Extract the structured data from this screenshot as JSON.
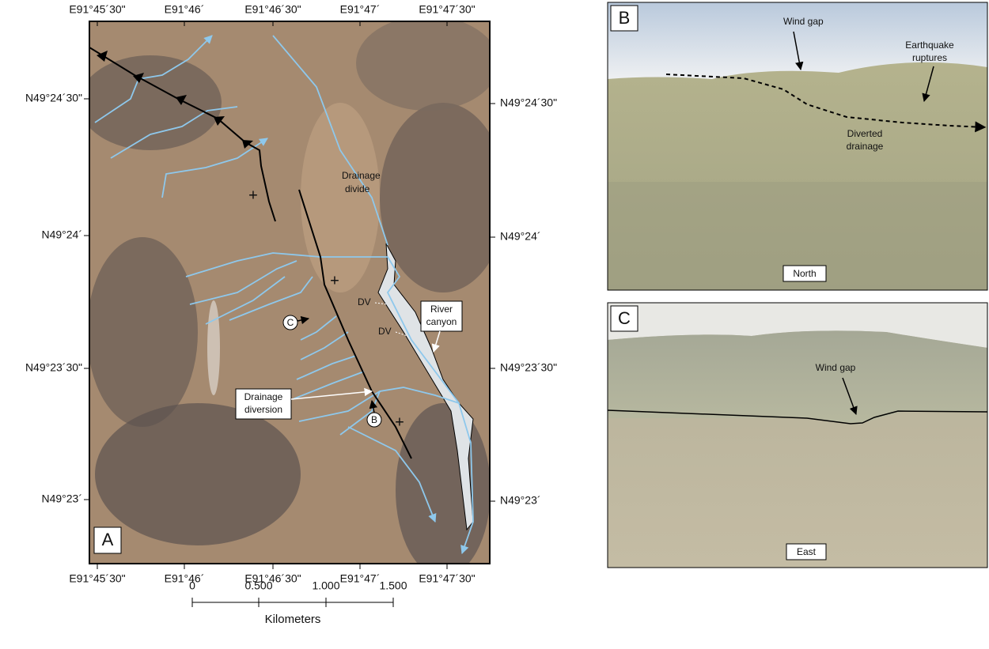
{
  "panel_a": {
    "label": "A",
    "lon_labels_top": [
      "E91°45´30\"",
      "E91°46´",
      "E91°46´30\"",
      "E91°47´",
      "E91°47´30\""
    ],
    "lon_labels_bottom": [
      "E91°45´30\"",
      "E91°46´",
      "E91°46´30\"",
      "E91°47´",
      "E91°47´30\""
    ],
    "lat_labels_left": [
      "N49°24´30\"",
      "N49°24´",
      "N49°23´30\"",
      "N49°23´"
    ],
    "lat_labels_right": [
      "N49°24´30\"",
      "N49°24´",
      "N49°23´30\"",
      "N49°23´"
    ],
    "drainage_divide": [
      "Drainage",
      "divide"
    ],
    "dv": [
      "DV",
      "DV"
    ],
    "river_canyon": [
      "River",
      "canyon"
    ],
    "drainage_diversion": [
      "Drainage",
      "diversion"
    ],
    "markers": [
      "C",
      "B"
    ],
    "plus": [
      "+",
      "+",
      "+"
    ],
    "scale_bar": {
      "ticks": [
        "0",
        "0.500",
        "1.000",
        "1.500"
      ],
      "unit": "Kilometers"
    }
  },
  "panel_b": {
    "label": "B",
    "wind_gap": "Wind gap",
    "earthquake_ruptures": [
      "Earthquake",
      "ruptures"
    ],
    "diverted_drainage": [
      "Diverted",
      "drainage"
    ],
    "direction": "North"
  },
  "panel_c": {
    "label": "C",
    "wind_gap": "Wind gap",
    "direction": "East"
  }
}
